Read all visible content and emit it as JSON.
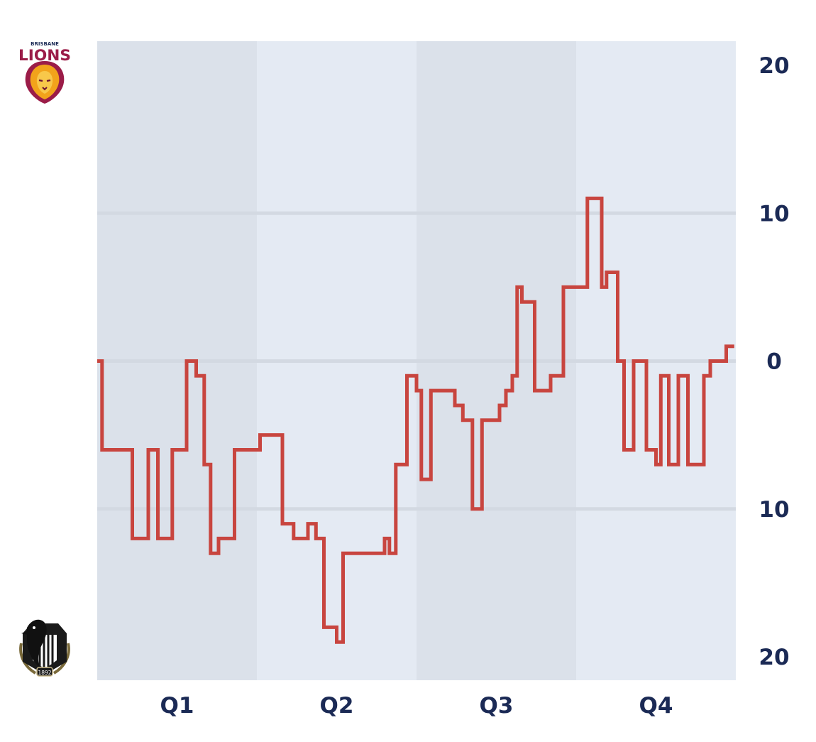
{
  "colors": {
    "band_dark": "#dbe1ea",
    "band_light": "#e4eaf3",
    "gridline": "#d3d9e2",
    "line": "#c8453f",
    "label": "#1b2a55"
  },
  "teams": {
    "top": {
      "name_small": "BRISBANE",
      "name_large": "LIONS",
      "icon": "lion-head-icon"
    },
    "bottom": {
      "year": "1892",
      "icon": "magpie-icon"
    }
  },
  "chart_data": {
    "type": "line",
    "step": true,
    "xlabels": [
      "Q1",
      "Q2",
      "Q3",
      "Q4"
    ],
    "xlim": [
      0,
      4
    ],
    "ylim": [
      -20,
      20
    ],
    "ytick_values": [
      20,
      10,
      0,
      -10,
      -20
    ],
    "ytick_labels": [
      "20",
      "10",
      "0",
      "10",
      "20"
    ],
    "grid": true,
    "series": [
      {
        "x": [
          0,
          0.03,
          0.22,
          0.32,
          0.38,
          0.47,
          0.56,
          0.62,
          0.67,
          0.71,
          0.76,
          0.86,
          1.02,
          1.16,
          1.23,
          1.32,
          1.37,
          1.42,
          1.5,
          1.54,
          1.6,
          1.8,
          1.83,
          1.87,
          1.94,
          2.0,
          2.03,
          2.09,
          2.24,
          2.29,
          2.35,
          2.41,
          2.52,
          2.56,
          2.6,
          2.63,
          2.66,
          2.74,
          2.84,
          2.92,
          3.07,
          3.16,
          3.19,
          3.26,
          3.3,
          3.36,
          3.44,
          3.5,
          3.53,
          3.58,
          3.64,
          3.7,
          3.72,
          3.8,
          3.84,
          3.94,
          3.99
        ],
        "y": [
          0,
          -6,
          -12,
          -6,
          -12,
          -6,
          0,
          -1,
          -7,
          -13,
          -12,
          -6,
          -5,
          -11,
          -12,
          -11,
          -12,
          -18,
          -19,
          -13,
          -13,
          -12,
          -13,
          -7,
          -1,
          -2,
          -8,
          -2,
          -3,
          -4,
          -10,
          -4,
          -3,
          -2,
          -1,
          5,
          4,
          -2,
          -1,
          5,
          11,
          5,
          6,
          0,
          -6,
          0,
          -6,
          -7,
          -1,
          -7,
          -1,
          -7,
          -7,
          -1,
          0,
          1,
          1
        ]
      }
    ]
  }
}
